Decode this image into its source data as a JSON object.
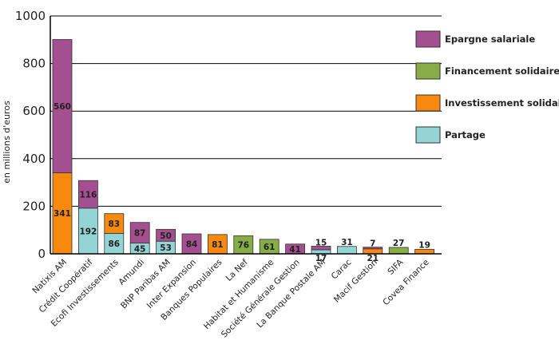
{
  "chart_data": {
    "type": "bar",
    "stacked": true,
    "title": "",
    "xlabel": "",
    "ylabel": "en millions d'euros",
    "ylim": [
      0,
      1000
    ],
    "yticks": [
      "0",
      "200",
      "400",
      "600",
      "800",
      "1000"
    ],
    "grid": true,
    "legend_position": "right",
    "categories": [
      "Natixis AM",
      "Crédit Coopératif",
      "Ecofi Investissements",
      "Amundi",
      "BNP Paribas AM",
      "Inter Expansion",
      "Banques Populaires",
      "La Nef",
      "Habitat et Humanisme",
      "Société Générale Gestion",
      "La Banque Postale AM",
      "Carac",
      "Macif Gestion",
      "SIFA",
      "Covea Finance"
    ],
    "series": [
      {
        "name": "Partage",
        "color": "#94d4d4",
        "values": [
          0,
          192,
          86,
          45,
          53,
          0,
          0,
          0,
          0,
          0,
          17,
          31,
          0,
          0,
          0
        ]
      },
      {
        "name": "Investissement solidaire",
        "color": "#f7890f",
        "values": [
          341,
          0,
          83,
          0,
          0,
          0,
          81,
          0,
          0,
          0,
          0,
          0,
          21,
          0,
          19
        ]
      },
      {
        "name": "Financement solidaire",
        "color": "#88ad47",
        "values": [
          0,
          0,
          0,
          0,
          0,
          0,
          0,
          76,
          61,
          0,
          0,
          0,
          0,
          27,
          0
        ]
      },
      {
        "name": "Epargne salariale",
        "color": "#a44f8f",
        "values": [
          560,
          116,
          0,
          87,
          50,
          84,
          0,
          0,
          0,
          41,
          15,
          0,
          7,
          0,
          0
        ]
      }
    ],
    "legend": [
      {
        "name": "Epargne salariale",
        "color": "#a44f8f"
      },
      {
        "name": "Financement solidaire",
        "color": "#88ad47"
      },
      {
        "name": "Investissement solidaire",
        "color": "#f7890f"
      },
      {
        "name": "Partage",
        "color": "#94d4d4"
      }
    ]
  }
}
